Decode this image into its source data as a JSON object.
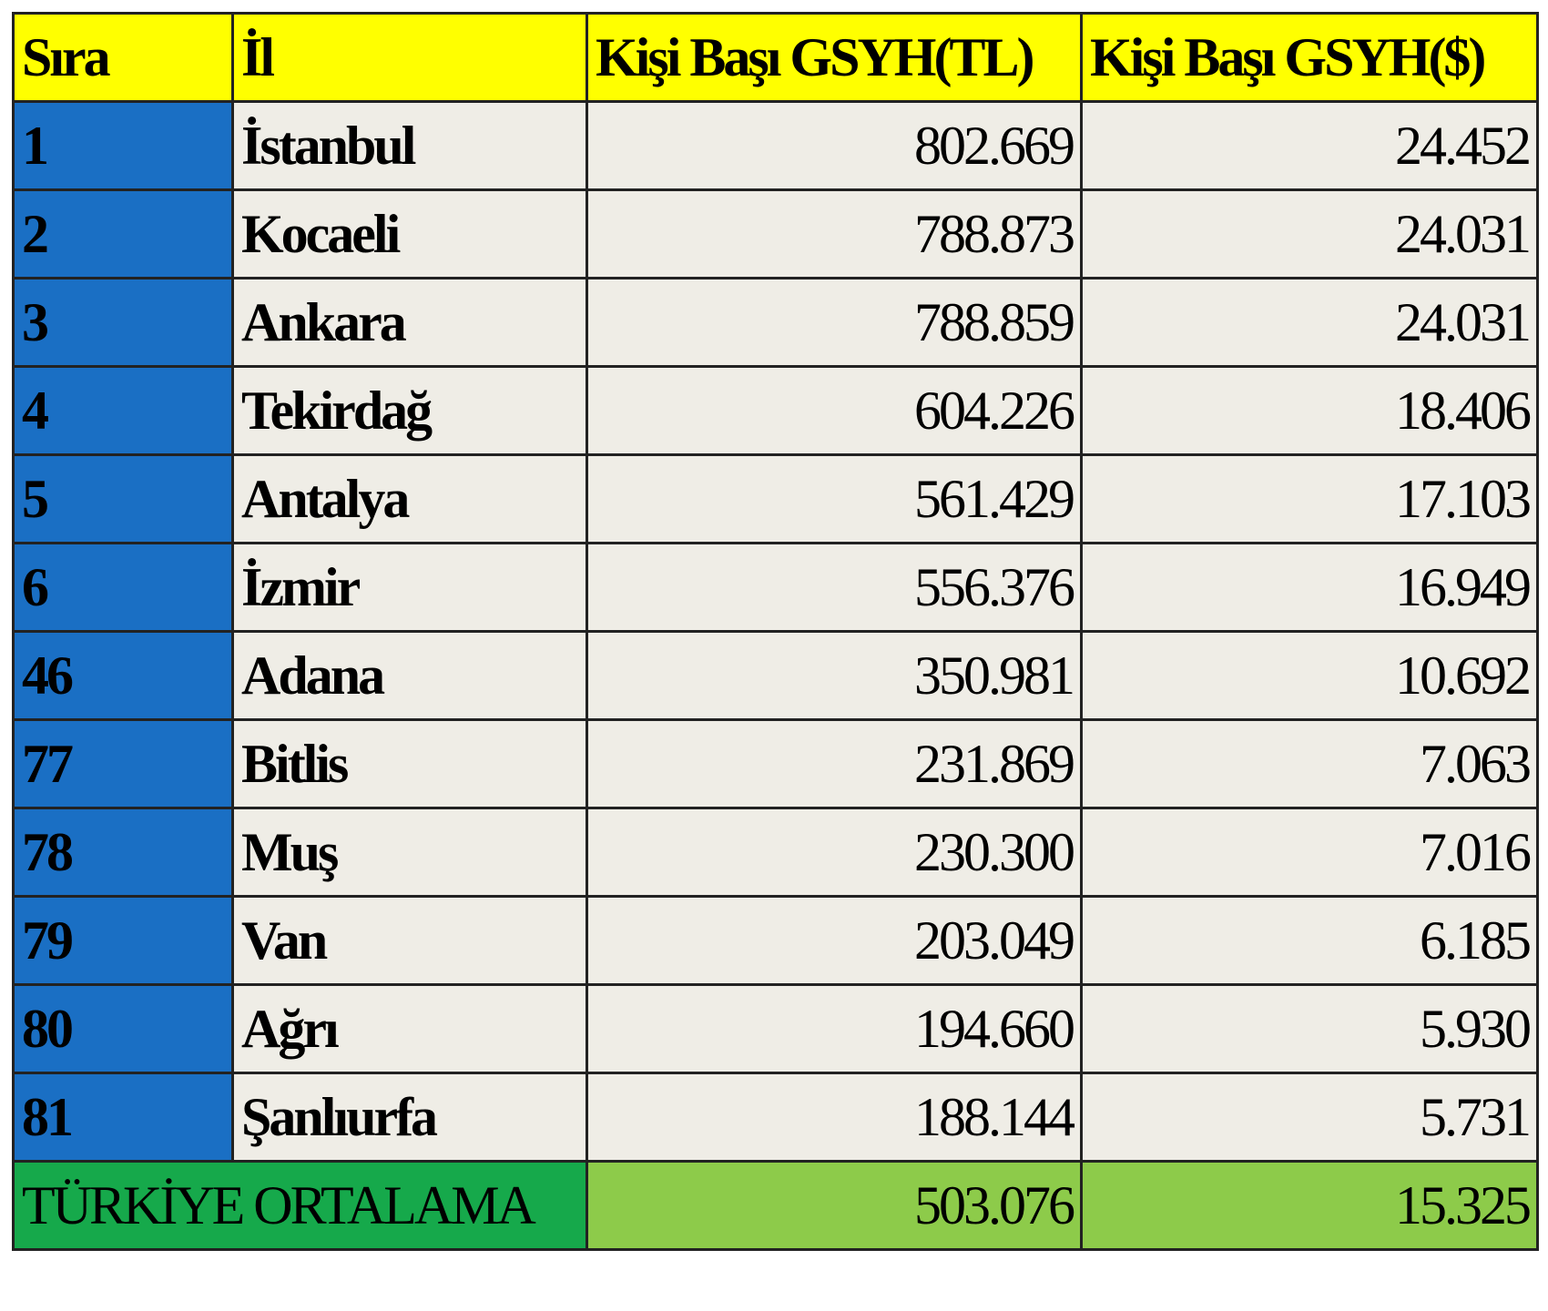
{
  "table": {
    "header": [
      "Sıra",
      "İl",
      "Kişi Başı GSYH(TL)",
      "Kişi Başı GSYH($)"
    ],
    "rows": [
      [
        "1",
        "İstanbul",
        "802.669",
        "24.452"
      ],
      [
        "2",
        "Kocaeli",
        "788.873",
        "24.031"
      ],
      [
        "3",
        "Ankara",
        "788.859",
        "24.031"
      ],
      [
        "4",
        "Tekirdağ",
        "604.226",
        "18.406"
      ],
      [
        "5",
        "Antalya",
        "561.429",
        "17.103"
      ],
      [
        "6",
        "İzmir",
        "556.376",
        "16.949"
      ],
      [
        "46",
        "Adana",
        "350.981",
        "10.692"
      ],
      [
        "77",
        "Bitlis",
        "231.869",
        "7.063"
      ],
      [
        "78",
        "Muş",
        "230.300",
        "7.016"
      ],
      [
        "79",
        "Van",
        "203.049",
        "6.185"
      ],
      [
        "80",
        "Ağrı",
        "194.660",
        "5.930"
      ],
      [
        "81",
        "Şanlıurfa",
        "188.144",
        "5.731"
      ]
    ],
    "footer": [
      "TÜRKİYE ORTALAMA",
      "503.076",
      "15.325"
    ]
  }
}
